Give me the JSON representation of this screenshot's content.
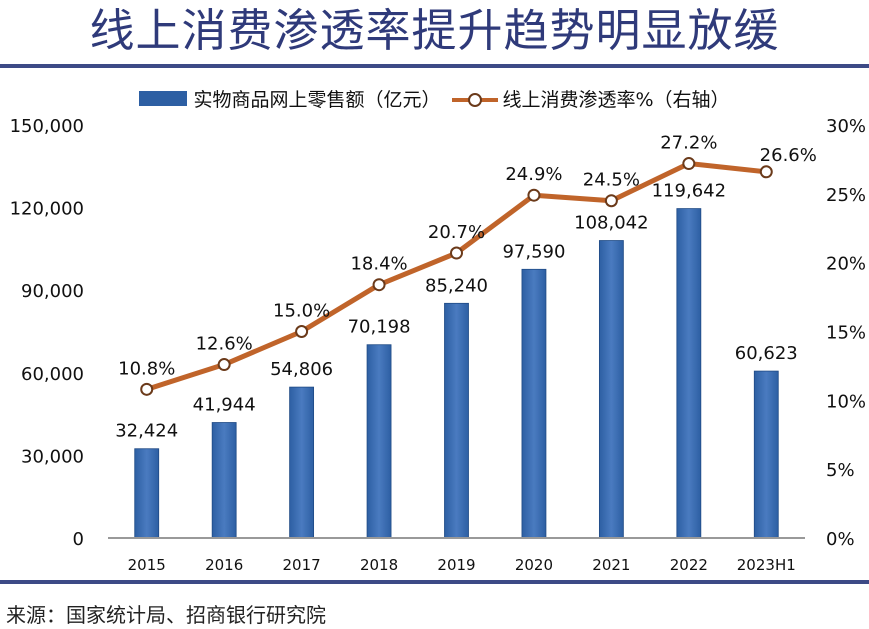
{
  "page": {
    "title": "线上消费渗透率提升趋势明显放缓",
    "source": "来源：国家统计局、招商银行研究院"
  },
  "colors": {
    "title": "#2f3a7a",
    "rule": "#3d4a86",
    "bar": "#2d5fa3",
    "bar_light": "#4a7bc0",
    "line": "#c0642a",
    "marker_edge": "#6b3a1a",
    "axis": "#999999"
  },
  "chart_data": {
    "type": "bar+line",
    "title": "线上消费渗透率提升趋势明显放缓",
    "categories": [
      "2015",
      "2016",
      "2017",
      "2018",
      "2019",
      "2020",
      "2021",
      "2022",
      "2023H1"
    ],
    "series": [
      {
        "name": "实物商品网上零售额（亿元）",
        "type": "bar",
        "axis": "left",
        "values": [
          32424,
          41944,
          54806,
          70198,
          85240,
          97590,
          108042,
          119642,
          60623
        ],
        "labels": [
          "32,424",
          "41,944",
          "54,806",
          "70,198",
          "85,240",
          "97,590",
          "108,042",
          "119,642",
          "60,623"
        ]
      },
      {
        "name": "线上消费渗透率%（右轴）",
        "type": "line",
        "axis": "right",
        "values": [
          10.8,
          12.6,
          15.0,
          18.4,
          20.7,
          24.9,
          24.5,
          27.2,
          26.6
        ],
        "labels": [
          "10.8%",
          "12.6%",
          "15.0%",
          "18.4%",
          "20.7%",
          "24.9%",
          "24.5%",
          "27.2%",
          "26.6%"
        ]
      }
    ],
    "left_axis": {
      "ylim": [
        0,
        150000
      ],
      "ticks": [
        0,
        30000,
        60000,
        90000,
        120000,
        150000
      ],
      "tick_labels": [
        "0",
        "30,000",
        "60,000",
        "90,000",
        "120,000",
        "150,000"
      ]
    },
    "right_axis": {
      "ylim": [
        0,
        30
      ],
      "ticks": [
        0,
        5,
        10,
        15,
        20,
        25,
        30
      ],
      "tick_labels": [
        "0%",
        "5%",
        "10%",
        "15%",
        "20%",
        "25%",
        "30%"
      ]
    },
    "legend": {
      "position": "top",
      "entries": [
        "实物商品网上零售额（亿元）",
        "线上消费渗透率%（右轴）"
      ]
    },
    "grid": false
  }
}
